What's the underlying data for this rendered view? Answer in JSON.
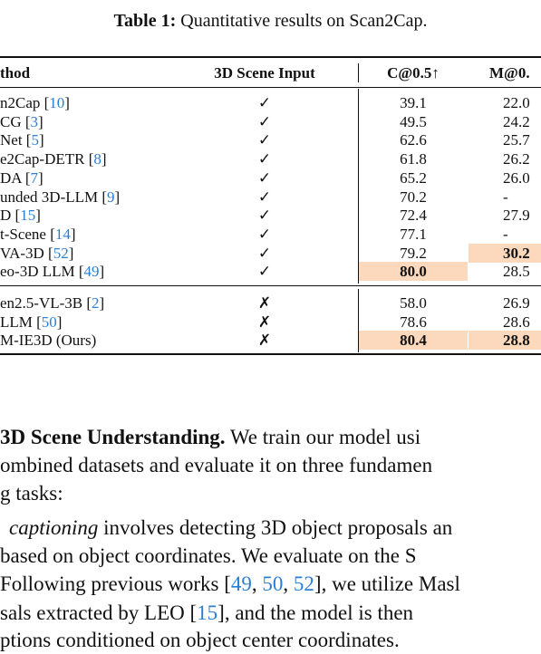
{
  "caption": {
    "label": "Table 1:",
    "text": "Quantitative results on Scan2Cap."
  },
  "table": {
    "header": [
      "thod",
      "3D Scene Input",
      "C@0.5↑",
      "M@0."
    ],
    "groups": [
      [
        {
          "method": [
            "n2Cap [",
            "10",
            "]"
          ],
          "input": "✓",
          "c": "39.1",
          "m": "22.0"
        },
        {
          "method": [
            "CG [",
            "3",
            "]"
          ],
          "input": "✓",
          "c": "49.5",
          "m": "24.2"
        },
        {
          "method": [
            "Net [",
            "5",
            "]"
          ],
          "input": "✓",
          "c": "62.6",
          "m": "25.7"
        },
        {
          "method": [
            "e2Cap-DETR [",
            "8",
            "]"
          ],
          "input": "✓",
          "c": "61.8",
          "m": "26.2"
        },
        {
          "method": [
            "DA [",
            "7",
            "]"
          ],
          "input": "✓",
          "c": "65.2",
          "m": "26.0"
        },
        {
          "method": [
            "unded 3D-LLM [",
            "9",
            "]"
          ],
          "input": "✓",
          "c": "70.2",
          "m": "-"
        },
        {
          "method": [
            "D [",
            "15",
            "]"
          ],
          "input": "✓",
          "c": "72.4",
          "m": "27.9"
        },
        {
          "method": [
            "t-Scene [",
            "14",
            "]"
          ],
          "input": "✓",
          "c": "77.1",
          "m": "-"
        },
        {
          "method": [
            "VA-3D [",
            "52",
            "]"
          ],
          "input": "✓",
          "c": "79.2",
          "m": "30.2"
        },
        {
          "method": [
            "eo-3D LLM [",
            "49",
            "]"
          ],
          "input": "✓",
          "c": "80.0",
          "m": "28.5"
        }
      ],
      [
        {
          "method": [
            "en2.5-VL-3B [",
            "2",
            "]"
          ],
          "input": "✗",
          "c": "58.0",
          "m": "26.9"
        },
        {
          "method": [
            " LLM [",
            "50",
            "]"
          ],
          "input": "✗",
          "c": "78.6",
          "m": "28.6"
        },
        {
          "method": [
            "M-IE3D (Ours)"
          ],
          "input": "✗",
          "c": "80.4",
          "m": "28.8"
        }
      ]
    ]
  },
  "body": {
    "heading": "3D Scene Understanding.",
    "lines": [
      [
        " We train our model usi"
      ],
      [
        "ombined datasets and evaluate it on three fundamen"
      ],
      [
        "g tasks:"
      ],
      [
        "captioning",
        " involves detecting 3D object proposals an"
      ],
      [
        "based on object coordinates. We evaluate on the S"
      ],
      [
        "Following previous works [",
        "49",
        ", ",
        "50",
        ", ",
        "52",
        "], we utilize Masl"
      ],
      [
        "sals extracted by LEO [",
        "15",
        "], and the model is then"
      ],
      [
        "ptions conditioned on object center coordinates."
      ]
    ]
  }
}
